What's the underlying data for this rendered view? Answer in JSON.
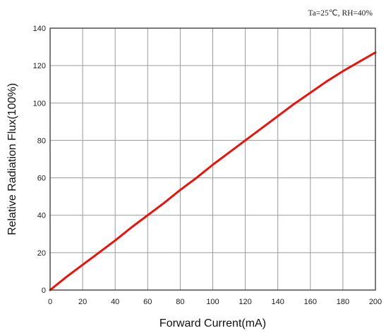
{
  "chart_data": {
    "type": "line",
    "annotation": "Ta=25℃, RH=40%",
    "xlabel": "Forward Current(mA)",
    "ylabel": "Relative Radiation Flux(100%)",
    "xlim": [
      0,
      200
    ],
    "ylim": [
      0,
      140
    ],
    "xticks": [
      0,
      20,
      40,
      60,
      80,
      100,
      120,
      140,
      160,
      180,
      200
    ],
    "yticks": [
      0,
      20,
      40,
      60,
      80,
      100,
      120,
      140
    ],
    "grid": true,
    "line_color": "#e8140c",
    "series": [
      {
        "x": [
          0,
          10,
          20,
          30,
          40,
          50,
          60,
          70,
          80,
          90,
          100,
          110,
          120,
          130,
          140,
          150,
          160,
          170,
          180,
          190,
          200
        ],
        "y": [
          0,
          7,
          13.5,
          20,
          26.5,
          33.5,
          40,
          46.5,
          53.5,
          60,
          67,
          73.5,
          80,
          86.5,
          93,
          99.5,
          105.5,
          111.5,
          117,
          122,
          127
        ]
      }
    ]
  }
}
